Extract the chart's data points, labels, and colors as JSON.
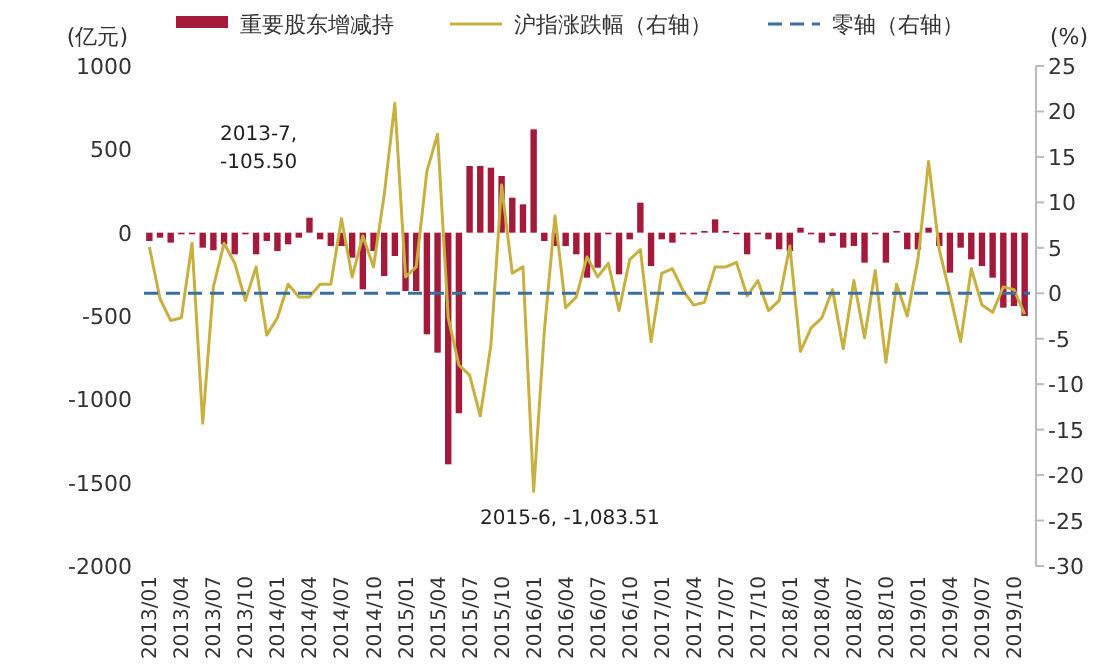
{
  "chart_data": {
    "type": "bar",
    "ylabel": "(亿元)",
    "y2label": "(%)",
    "categories": [
      "2013/01",
      null,
      null,
      "2013/04",
      null,
      null,
      "2013/07",
      null,
      null,
      "2013/10",
      null,
      null,
      "2014/01",
      null,
      null,
      "2014/04",
      null,
      null,
      "2014/07",
      null,
      null,
      "2014/10",
      null,
      null,
      "2015/01",
      null,
      null,
      "2015/04",
      null,
      null,
      "2015/07",
      null,
      null,
      "2015/10",
      null,
      null,
      "2016/01",
      null,
      null,
      "2016/04",
      null,
      null,
      "2016/07",
      null,
      null,
      "2016/10",
      null,
      null,
      "2017/01",
      null,
      null,
      "2017/04",
      null,
      null,
      "2017/07",
      null,
      null,
      "2017/10",
      null,
      null,
      "2018/01",
      null,
      null,
      "2018/04",
      null,
      null,
      "2018/07",
      null,
      null,
      "2018/10",
      null,
      null,
      "2019/01",
      null,
      null,
      "2019/04",
      null,
      null,
      "2019/07",
      null,
      null,
      "2019/10",
      null
    ],
    "series": [
      {
        "name": "重要股东增减持",
        "color": "#a31a3a",
        "values": [
          -50,
          -30,
          -60,
          -10,
          -10,
          -90,
          -105.5,
          -70,
          -130,
          -10,
          -130,
          -50,
          -110,
          -70,
          -30,
          90,
          -40,
          -80,
          -80,
          -150,
          -340,
          -110,
          -260,
          -140,
          -350,
          -350,
          -610,
          -720,
          -1390,
          -1083.51,
          400,
          400,
          390,
          340,
          210,
          170,
          620,
          -50,
          -80,
          -80,
          -130,
          -270,
          -210,
          -10,
          -250,
          -40,
          180,
          -200,
          -40,
          -60,
          -10,
          -10,
          10,
          80,
          10,
          -10,
          -130,
          -10,
          -40,
          -100,
          -110,
          30,
          -10,
          -60,
          -20,
          -90,
          -80,
          -180,
          -10,
          -180,
          10,
          -100,
          -100,
          30,
          -80,
          -240,
          -90,
          -160,
          -200,
          -270,
          -450,
          -440,
          -500
        ]
      },
      {
        "name": "沪指涨跌幅（右轴）",
        "type": "line",
        "axis": "y2",
        "color": "#c8b040",
        "values": [
          5.1,
          -0.6,
          -3.0,
          -2.7,
          5.5,
          -14.3,
          0.7,
          5.5,
          3.3,
          -0.8,
          2.9,
          -4.6,
          -2.7,
          1.0,
          -0.4,
          -0.4,
          1.0,
          1.0,
          8.2,
          1.8,
          6.3,
          2.9,
          10.8,
          20.9,
          1.8,
          2.9,
          13.4,
          17.5,
          -2.7,
          -7.9,
          -9.0,
          -13.5,
          -5.7,
          11.9,
          2.2,
          2.9,
          -21.8,
          -4.2,
          8.5,
          -1.6,
          -0.4,
          4.0,
          1.8,
          3.3,
          -1.9,
          3.7,
          4.8,
          -5.3,
          2.2,
          2.7,
          0.3,
          -1.3,
          -1.0,
          2.9,
          2.9,
          3.4,
          -0.3,
          1.4,
          -1.9,
          -0.8,
          5.2,
          -6.4,
          -3.8,
          -2.7,
          0.4,
          -6.1,
          1.4,
          -4.9,
          2.5,
          -7.6,
          1.0,
          -2.5,
          3.7,
          14.5,
          4.8,
          -0.1,
          -5.3,
          2.7,
          -1.3,
          -2.1,
          0.7,
          0.4,
          -2.3
        ]
      }
    ],
    "ylim": [
      -2000,
      1000
    ],
    "yticks": [
      -2000,
      -1500,
      -1000,
      -500,
      0,
      500,
      1000
    ],
    "y2lim": [
      -30,
      25
    ],
    "y2ticks": [
      -30,
      -25,
      -20,
      -15,
      -10,
      -5,
      0,
      5,
      10,
      15,
      20,
      25
    ],
    "ref_lines": [
      {
        "axis": "y2",
        "value": 0,
        "label": "零轴（右轴）",
        "color": "#3a6e9e",
        "line_style": "dashed"
      }
    ],
    "annotations": [
      "2013-7, -105.50",
      "2015-6, -1,083.51"
    ],
    "legend": "top"
  }
}
